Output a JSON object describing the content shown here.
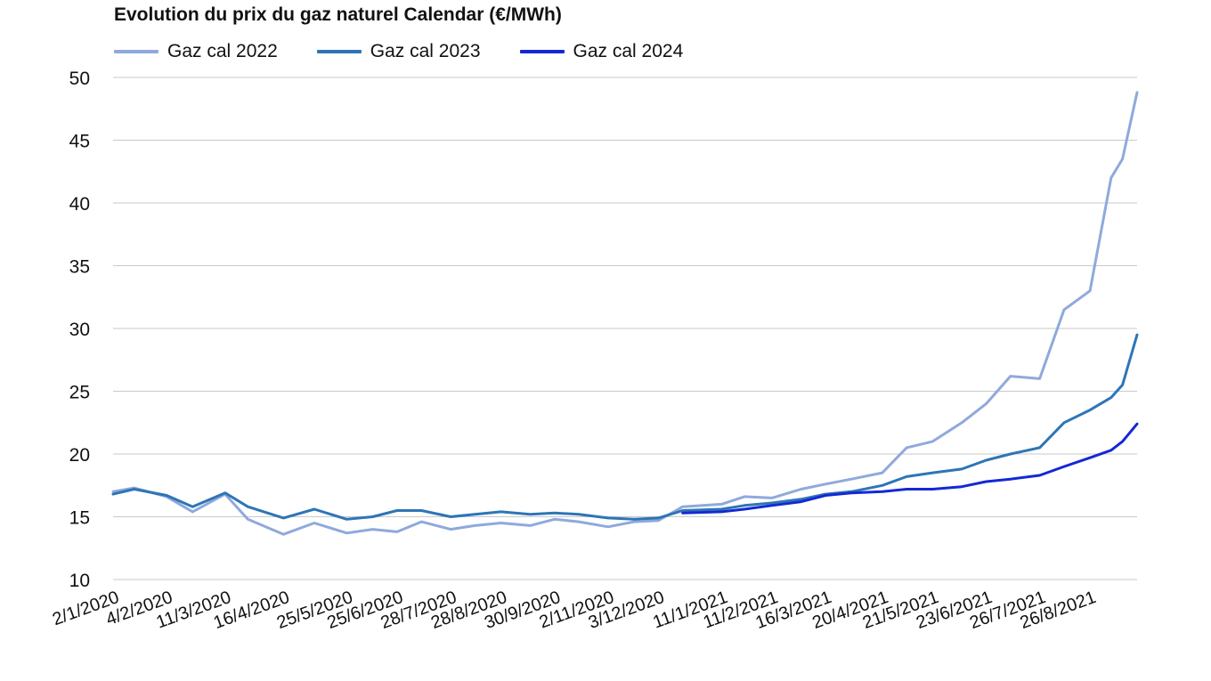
{
  "chart_data": {
    "type": "line",
    "title": "Evolution du prix du gaz naturel Calendar (€/MWh)",
    "xlabel": "",
    "ylabel": "",
    "ylim": [
      10,
      50
    ],
    "yticks": [
      10,
      15,
      20,
      25,
      30,
      35,
      40,
      45,
      50
    ],
    "grid": "horizontal",
    "legend_position": "top-left",
    "x_tick_labels": [
      "2/1/2020",
      "4/2/2020",
      "11/3/2020",
      "16/4/2020",
      "25/5/2020",
      "25/6/2020",
      "28/7/2020",
      "28/8/2020",
      "30/9/2020",
      "2/11/2020",
      "3/12/2020",
      "11/1/2021",
      "11/2/2021",
      "16/3/2021",
      "20/4/2021",
      "21/5/2021",
      "23/6/2021",
      "26/7/2021",
      "26/8/2021"
    ],
    "x": [
      "2/1/2020",
      "15/1/2020",
      "4/2/2020",
      "20/2/2020",
      "11/3/2020",
      "25/3/2020",
      "16/4/2020",
      "5/5/2020",
      "25/5/2020",
      "10/6/2020",
      "25/6/2020",
      "10/7/2020",
      "28/7/2020",
      "12/8/2020",
      "28/8/2020",
      "15/9/2020",
      "30/9/2020",
      "15/10/2020",
      "2/11/2020",
      "18/11/2020",
      "3/12/2020",
      "18/12/2020",
      "11/1/2021",
      "25/1/2021",
      "11/2/2021",
      "1/3/2021",
      "16/3/2021",
      "1/4/2021",
      "20/4/2021",
      "5/5/2021",
      "21/5/2021",
      "8/6/2021",
      "23/6/2021",
      "8/7/2021",
      "26/7/2021",
      "10/8/2021",
      "26/8/2021",
      "8/9/2021",
      "15/9/2021",
      "24/9/2021"
    ],
    "series": [
      {
        "name": "Gaz cal 2022",
        "color": "#8fa9dc",
        "values": [
          17.0,
          17.3,
          16.6,
          15.4,
          16.8,
          14.8,
          13.6,
          14.5,
          13.7,
          14.0,
          13.8,
          14.6,
          14.0,
          14.3,
          14.5,
          14.3,
          14.8,
          14.6,
          14.2,
          14.6,
          14.7,
          15.8,
          16.0,
          16.6,
          16.5,
          17.2,
          17.6,
          18.0,
          18.5,
          20.5,
          21.0,
          22.5,
          24.0,
          26.2,
          26.0,
          31.5,
          33.0,
          42.0,
          43.5,
          48.8
        ]
      },
      {
        "name": "Gaz cal 2023",
        "color": "#2e75b6",
        "values": [
          16.8,
          17.2,
          16.7,
          15.8,
          16.9,
          15.8,
          14.9,
          15.6,
          14.8,
          15.0,
          15.5,
          15.5,
          15.0,
          15.2,
          15.4,
          15.2,
          15.3,
          15.2,
          14.9,
          14.8,
          14.9,
          15.5,
          15.6,
          15.9,
          16.1,
          16.4,
          16.8,
          17.0,
          17.5,
          18.2,
          18.5,
          18.8,
          19.5,
          20.0,
          20.5,
          22.5,
          23.5,
          24.5,
          25.5,
          29.5
        ]
      },
      {
        "name": "Gaz cal 2024",
        "color": "#1428d6",
        "values": [
          null,
          null,
          null,
          null,
          null,
          null,
          null,
          null,
          null,
          null,
          null,
          null,
          null,
          null,
          null,
          null,
          null,
          null,
          null,
          null,
          null,
          15.3,
          15.4,
          15.6,
          15.9,
          16.2,
          16.7,
          16.9,
          17.0,
          17.2,
          17.2,
          17.4,
          17.8,
          18.0,
          18.3,
          19.0,
          19.7,
          20.3,
          21.0,
          22.4
        ]
      }
    ]
  }
}
